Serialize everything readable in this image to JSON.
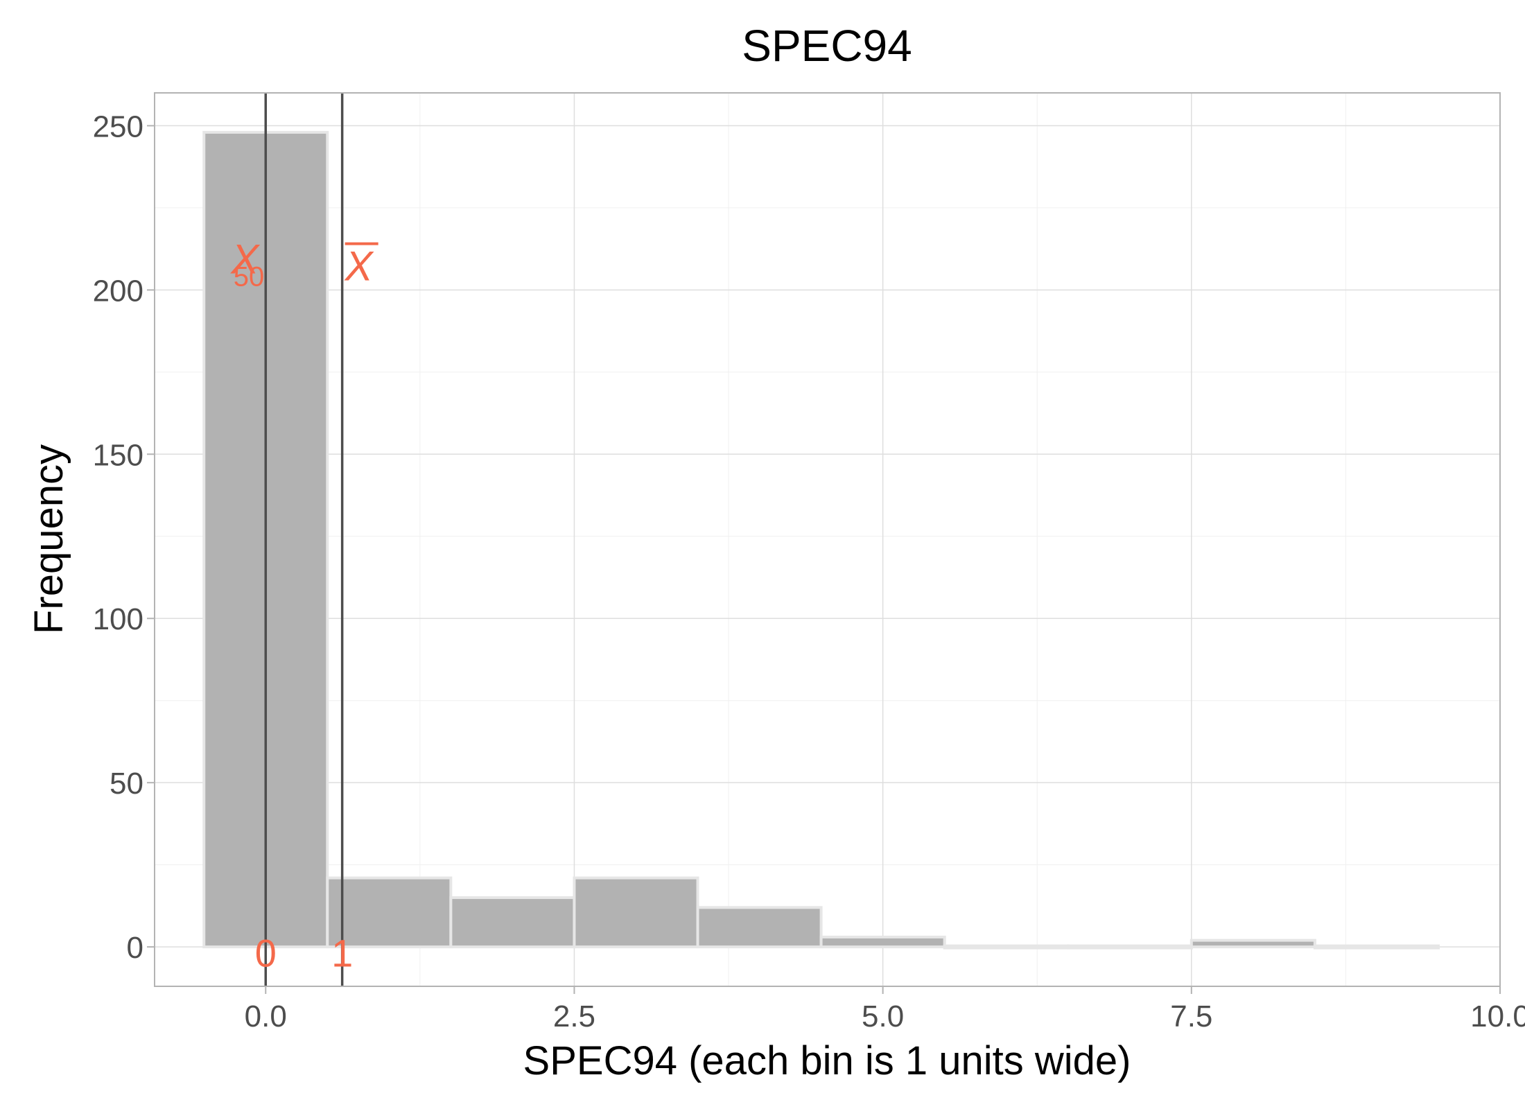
{
  "chart_data": {
    "type": "bar",
    "title": "SPEC94",
    "xlabel": "SPEC94 (each bin is 1 units wide)",
    "ylabel": "Frequency",
    "xlim": [
      -0.9,
      10.0
    ],
    "ylim": [
      -12,
      260
    ],
    "x_ticks": [
      0.0,
      2.5,
      5.0,
      7.5,
      10.0
    ],
    "x_tick_labels": [
      "0.0",
      "2.5",
      "5.0",
      "7.5",
      "10.0"
    ],
    "y_ticks": [
      0,
      50,
      100,
      150,
      200,
      250
    ],
    "y_tick_labels": [
      "0",
      "50",
      "100",
      "150",
      "200",
      "250"
    ],
    "bin_width": 1,
    "bins": [
      {
        "center": 0,
        "count": 248
      },
      {
        "center": 1,
        "count": 21
      },
      {
        "center": 2,
        "count": 15
      },
      {
        "center": 3,
        "count": 21
      },
      {
        "center": 4,
        "count": 12
      },
      {
        "center": 5,
        "count": 3
      },
      {
        "center": 6,
        "count": 0
      },
      {
        "center": 7,
        "count": 0
      },
      {
        "center": 8,
        "count": 2
      },
      {
        "center": 9,
        "count": 0
      }
    ],
    "vlines": [
      {
        "x": 0,
        "label_main": "X",
        "label_sub": "50",
        "value_label": "0"
      },
      {
        "x": 0.62,
        "label_main": "X",
        "overline": true,
        "value_label": "1"
      }
    ],
    "grid": true,
    "colors": {
      "bar_fill": "#b2b2b2",
      "bar_outline": "#e6e6e6",
      "annotation": "#f4694a",
      "vline": "#4d4d4d",
      "grid_major": "#dedede",
      "grid_minor": "#f0f0f0",
      "panel_border": "#b3b3b3"
    }
  }
}
